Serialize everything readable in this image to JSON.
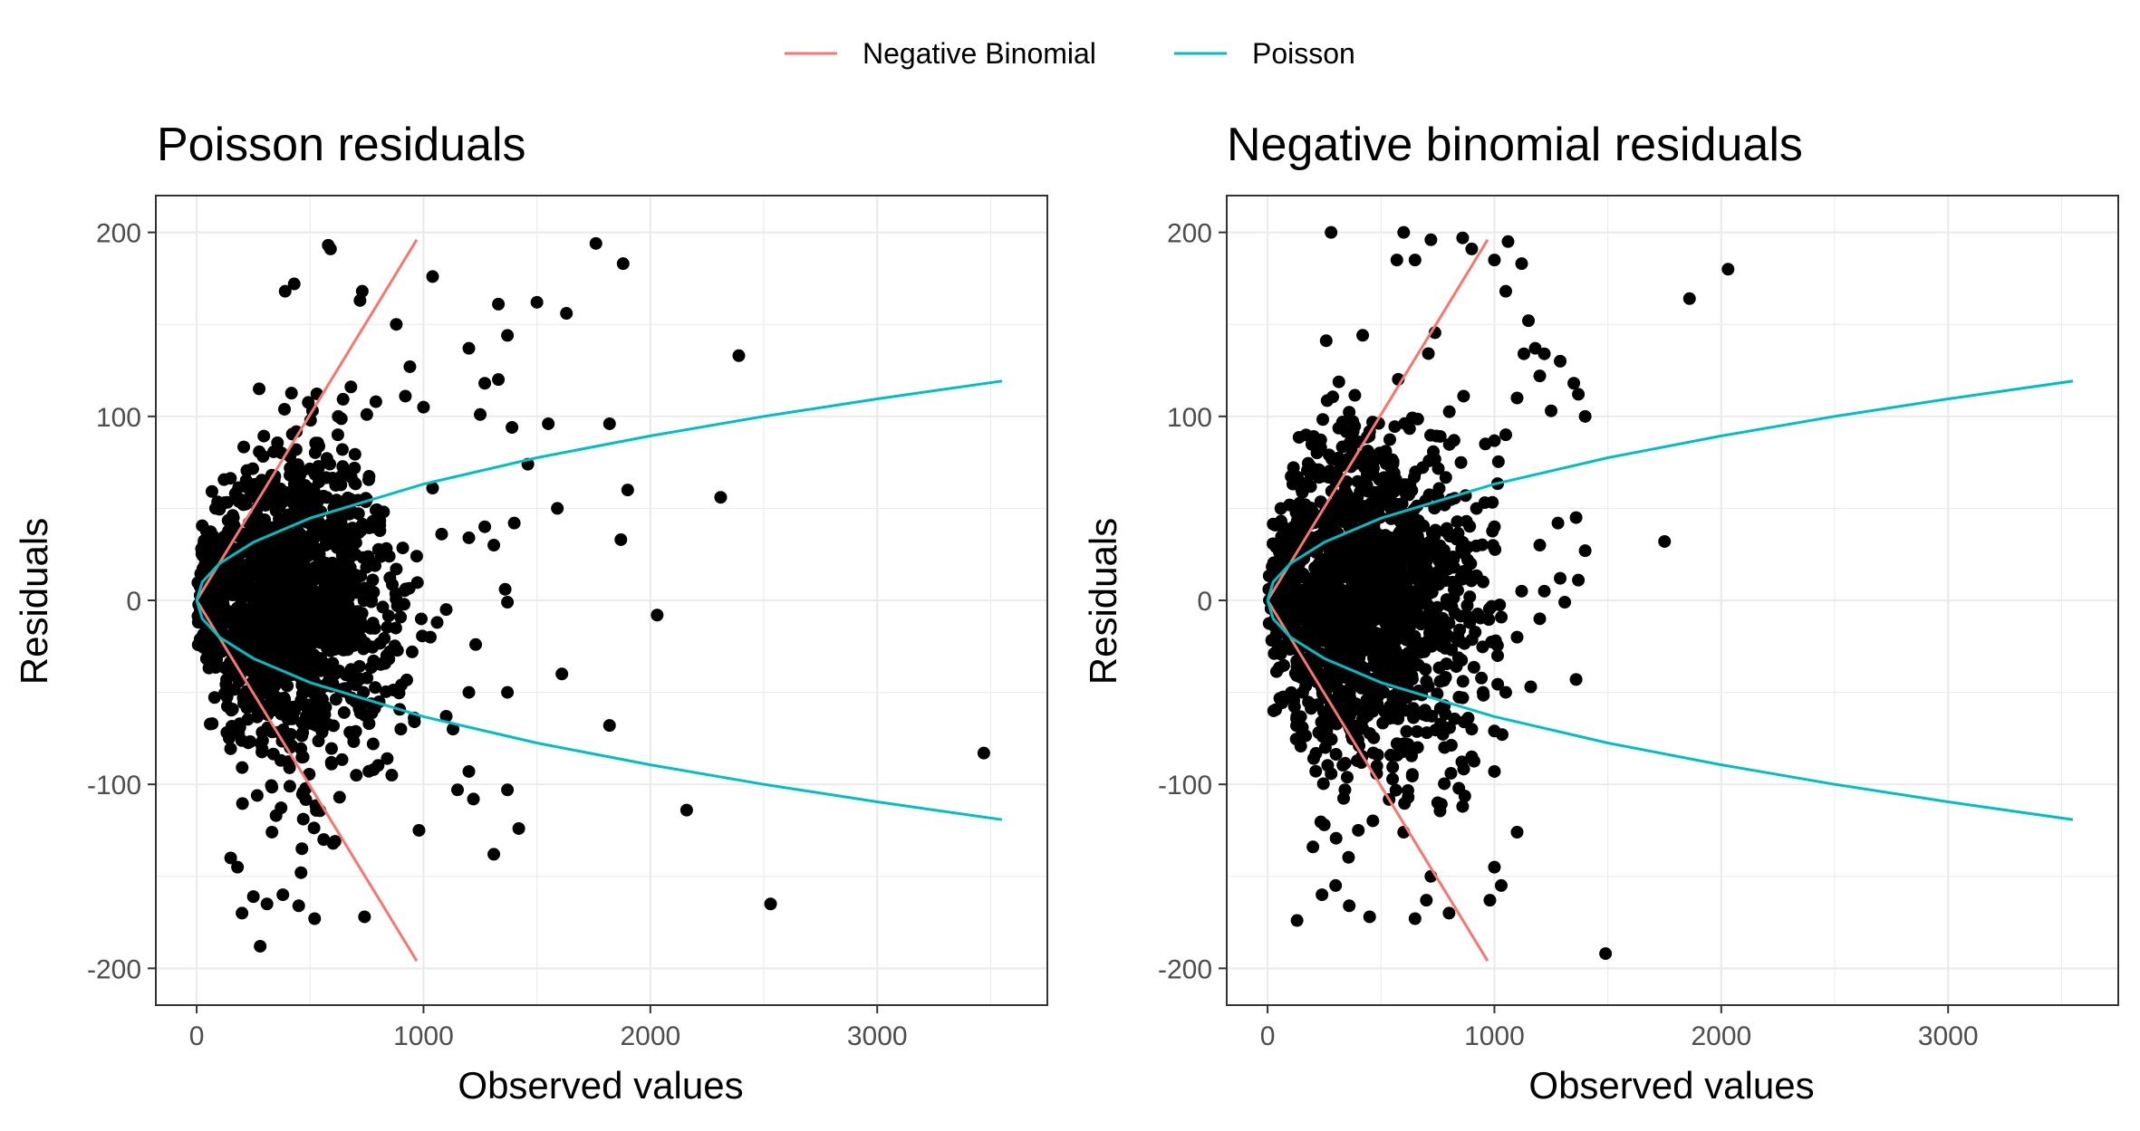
{
  "legend": {
    "position": "top",
    "items": [
      {
        "label": "Negative Binomial",
        "color": "#F8766D"
      },
      {
        "label": "Poisson",
        "color": "#00BFC4"
      }
    ]
  },
  "chart_data": [
    {
      "type": "scatter",
      "title": "Poisson residuals",
      "xlabel": "Observed values",
      "ylabel": "Residuals",
      "xlim": [
        -180,
        3750
      ],
      "ylim": [
        -220,
        220
      ],
      "xticks": [
        0,
        1000,
        2000,
        3000
      ],
      "xtick_labels": [
        "0",
        "1000",
        "2000",
        "3000"
      ],
      "yticks": [
        -200,
        -100,
        0,
        100,
        200
      ],
      "ytick_labels": [
        "-200",
        "-100",
        "0",
        "100",
        "200"
      ],
      "grid": true,
      "point_color": "#000000",
      "series": [
        {
          "name": "Negative Binomial",
          "color": "#F8766D",
          "kind": "line",
          "x": [
            0,
            100,
            200,
            300,
            400,
            500,
            600,
            700,
            800,
            900,
            970
          ],
          "y_upper": [
            0,
            20.2,
            40.4,
            60.6,
            80.8,
            101,
            121.2,
            141.4,
            161.6,
            181.8,
            196
          ],
          "y_lower": [
            0,
            -20.2,
            -40.4,
            -60.6,
            -80.8,
            -101,
            -121.2,
            -141.4,
            -161.6,
            -181.8,
            -196
          ]
        },
        {
          "name": "Poisson",
          "color": "#00BFC4",
          "kind": "line",
          "x": [
            0,
            25,
            100,
            250,
            500,
            1000,
            1500,
            2000,
            2500,
            3000,
            3550
          ],
          "y_upper": [
            0,
            10,
            20,
            31.6,
            44.7,
            63.2,
            77.5,
            89.4,
            100,
            109.5,
            119.2
          ],
          "y_lower": [
            0,
            -10,
            -20,
            -31.6,
            -44.7,
            -63.2,
            -77.5,
            -89.4,
            -100,
            -109.5,
            -119.2
          ]
        }
      ],
      "points": [
        [
          580,
          193
        ],
        [
          590,
          191
        ],
        [
          430,
          172
        ],
        [
          390,
          168
        ],
        [
          730,
          168
        ],
        [
          720,
          163
        ],
        [
          880,
          150
        ],
        [
          1040,
          176
        ],
        [
          1760,
          194
        ],
        [
          1880,
          183
        ],
        [
          1330,
          161
        ],
        [
          1500,
          162
        ],
        [
          1630,
          156
        ],
        [
          1370,
          144
        ],
        [
          1200,
          137
        ],
        [
          1330,
          120
        ],
        [
          1270,
          118
        ],
        [
          940,
          127
        ],
        [
          680,
          116
        ],
        [
          750,
          101
        ],
        [
          790,
          108
        ],
        [
          920,
          111
        ],
        [
          1000,
          105
        ],
        [
          1550,
          96
        ],
        [
          1820,
          96
        ],
        [
          2390,
          133
        ],
        [
          1250,
          101
        ],
        [
          1390,
          94
        ],
        [
          1460,
          74
        ],
        [
          1900,
          60
        ],
        [
          2310,
          56
        ],
        [
          1870,
          33
        ],
        [
          1590,
          50
        ],
        [
          1400,
          42
        ],
        [
          1270,
          40
        ],
        [
          1310,
          30
        ],
        [
          1200,
          34
        ],
        [
          1040,
          61
        ],
        [
          1080,
          36
        ],
        [
          970,
          24
        ],
        [
          880,
          17
        ],
        [
          1360,
          6
        ],
        [
          1370,
          -1
        ],
        [
          2030,
          -8
        ],
        [
          1100,
          -5
        ],
        [
          1060,
          -12
        ],
        [
          1030,
          -20
        ],
        [
          1230,
          -24
        ],
        [
          950,
          -28
        ],
        [
          1610,
          -40
        ],
        [
          1370,
          -50
        ],
        [
          1200,
          -50
        ],
        [
          1100,
          -63
        ],
        [
          960,
          -66
        ],
        [
          1820,
          -68
        ],
        [
          1130,
          -70
        ],
        [
          1200,
          -93
        ],
        [
          1150,
          -103
        ],
        [
          1220,
          -108
        ],
        [
          1370,
          -103
        ],
        [
          1310,
          -138
        ],
        [
          1420,
          -124
        ],
        [
          980,
          -125
        ],
        [
          2160,
          -114
        ],
        [
          2530,
          -165
        ],
        [
          3470,
          -83
        ],
        [
          740,
          -172
        ],
        [
          520,
          -173
        ],
        [
          450,
          -166
        ],
        [
          380,
          -160
        ],
        [
          280,
          -188
        ],
        [
          200,
          -170
        ],
        [
          250,
          -161
        ],
        [
          310,
          -165
        ],
        [
          560,
          -130
        ],
        [
          610,
          -131
        ],
        [
          460,
          -148
        ],
        [
          180,
          -145
        ],
        [
          150,
          -140
        ],
        [
          350,
          -117
        ],
        [
          630,
          -107
        ],
        [
          780,
          -92
        ],
        [
          840,
          -86
        ],
        [
          860,
          -95
        ],
        [
          900,
          -70
        ],
        [
          760,
          -67
        ],
        [
          700,
          -55
        ]
      ],
      "cloud": {
        "x_center": 400,
        "x_spread": 230,
        "y_scale": 42,
        "n": 1500,
        "x_min": 5,
        "x_max": 1050,
        "y_cap": 165
      }
    },
    {
      "type": "scatter",
      "title": "Negative binomial residuals",
      "xlabel": "Observed values",
      "ylabel": "Residuals",
      "xlim": [
        -180,
        3750
      ],
      "ylim": [
        -220,
        220
      ],
      "xticks": [
        0,
        1000,
        2000,
        3000
      ],
      "xtick_labels": [
        "0",
        "1000",
        "2000",
        "3000"
      ],
      "yticks": [
        -200,
        -100,
        0,
        100,
        200
      ],
      "ytick_labels": [
        "-200",
        "-100",
        "0",
        "100",
        "200"
      ],
      "grid": true,
      "point_color": "#000000",
      "series": [
        {
          "name": "Negative Binomial",
          "color": "#F8766D",
          "kind": "line",
          "x": [
            0,
            100,
            200,
            300,
            400,
            500,
            600,
            700,
            800,
            900,
            970
          ],
          "y_upper": [
            0,
            20.2,
            40.4,
            60.6,
            80.8,
            101,
            121.2,
            141.4,
            161.6,
            181.8,
            196
          ],
          "y_lower": [
            0,
            -20.2,
            -40.4,
            -60.6,
            -80.8,
            -101,
            -121.2,
            -141.4,
            -161.6,
            -181.8,
            -196
          ]
        },
        {
          "name": "Poisson",
          "color": "#00BFC4",
          "kind": "line",
          "x": [
            0,
            25,
            100,
            250,
            500,
            1000,
            1500,
            2000,
            2500,
            3000,
            3550
          ],
          "y_upper": [
            0,
            10,
            20,
            31.6,
            44.7,
            63.2,
            77.5,
            89.4,
            100,
            109.5,
            119.2
          ],
          "y_lower": [
            0,
            -10,
            -20,
            -31.6,
            -44.7,
            -63.2,
            -77.5,
            -89.4,
            -100,
            -109.5,
            -119.2
          ]
        }
      ],
      "points": [
        [
          280,
          200
        ],
        [
          600,
          200
        ],
        [
          860,
          197
        ],
        [
          1060,
          195
        ],
        [
          720,
          196
        ],
        [
          900,
          191
        ],
        [
          1000,
          185
        ],
        [
          650,
          185
        ],
        [
          570,
          185
        ],
        [
          1120,
          183
        ],
        [
          1050,
          168
        ],
        [
          1150,
          152
        ],
        [
          1180,
          137
        ],
        [
          1130,
          134
        ],
        [
          1220,
          134
        ],
        [
          1290,
          130
        ],
        [
          1200,
          122
        ],
        [
          1350,
          118
        ],
        [
          1370,
          112
        ],
        [
          1400,
          100
        ],
        [
          1250,
          103
        ],
        [
          1100,
          110
        ],
        [
          1860,
          164
        ],
        [
          2030,
          180
        ],
        [
          1750,
          32
        ],
        [
          1400,
          27
        ],
        [
          1360,
          45
        ],
        [
          1280,
          42
        ],
        [
          1200,
          30
        ],
        [
          1290,
          12
        ],
        [
          1370,
          11
        ],
        [
          1120,
          5
        ],
        [
          1310,
          -1
        ],
        [
          1220,
          5
        ],
        [
          1100,
          -20
        ],
        [
          1200,
          -10
        ],
        [
          1360,
          -43
        ],
        [
          1160,
          -47
        ],
        [
          1050,
          -50
        ],
        [
          1000,
          -71
        ],
        [
          900,
          -70
        ],
        [
          1000,
          -93
        ],
        [
          1100,
          -126
        ],
        [
          1000,
          -145
        ],
        [
          980,
          -163
        ],
        [
          1030,
          -155
        ],
        [
          1490,
          -192
        ],
        [
          650,
          -173
        ],
        [
          700,
          -163
        ],
        [
          720,
          -150
        ],
        [
          800,
          -170
        ],
        [
          450,
          -172
        ],
        [
          360,
          -166
        ],
        [
          300,
          -155
        ],
        [
          240,
          -160
        ],
        [
          130,
          -174
        ],
        [
          200,
          -134
        ],
        [
          250,
          -122
        ],
        [
          400,
          -125
        ],
        [
          600,
          -126
        ],
        [
          750,
          -110
        ],
        [
          860,
          -112
        ],
        [
          900,
          -85
        ],
        [
          780,
          -80
        ],
        [
          950,
          -50
        ],
        [
          950,
          10
        ],
        [
          1000,
          40
        ],
        [
          960,
          85
        ],
        [
          1050,
          90
        ]
      ],
      "cloud": {
        "x_center": 420,
        "x_spread": 240,
        "y_scale": 45,
        "n": 1500,
        "x_min": 5,
        "x_max": 1080,
        "y_cap": 170
      }
    }
  ]
}
